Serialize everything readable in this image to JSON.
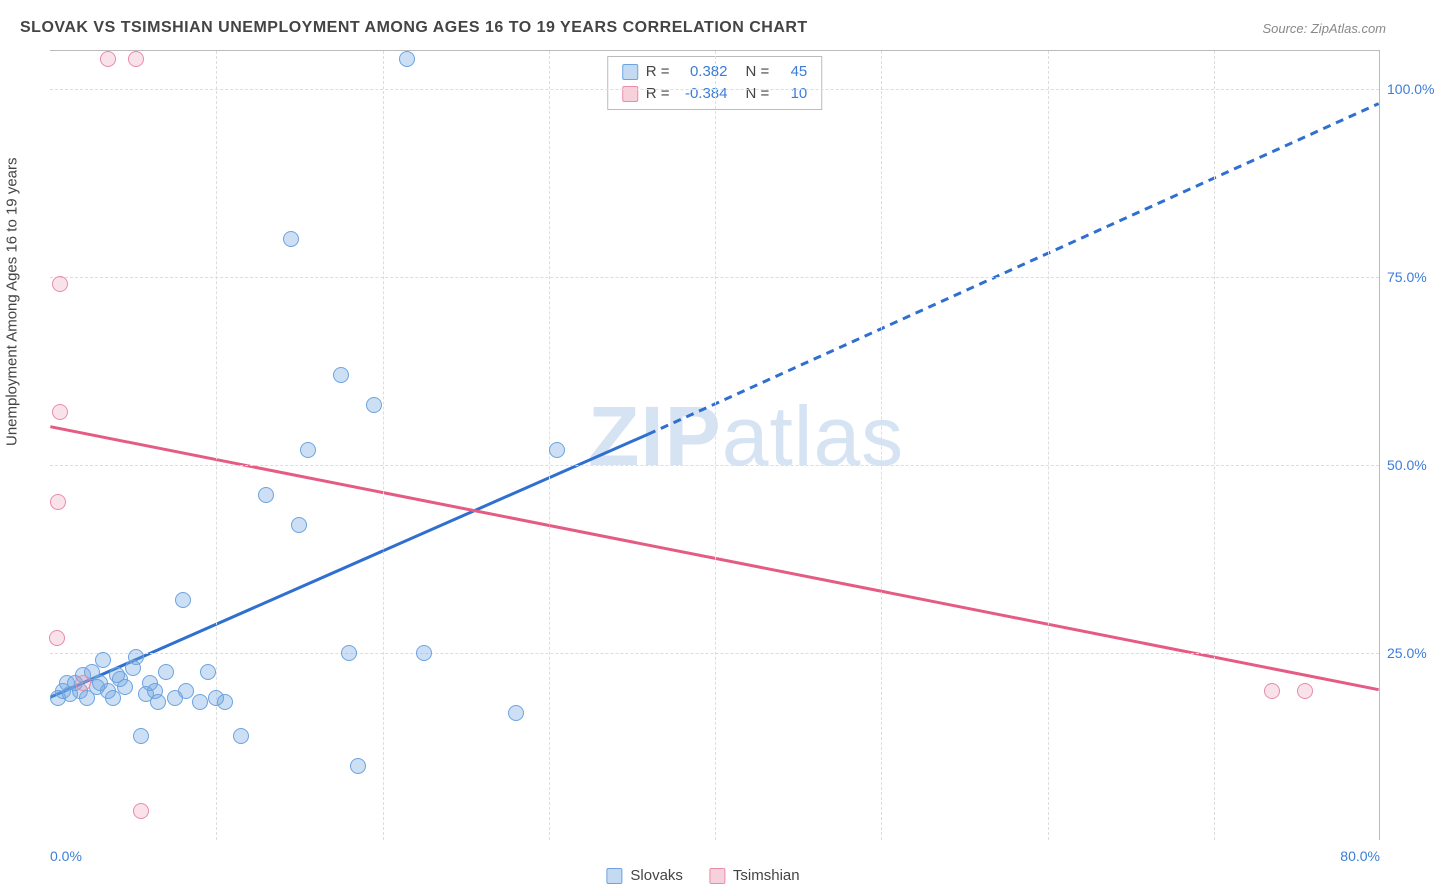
{
  "title": "SLOVAK VS TSIMSHIAN UNEMPLOYMENT AMONG AGES 16 TO 19 YEARS CORRELATION CHART",
  "source": "Source: ZipAtlas.com",
  "ylabel": "Unemployment Among Ages 16 to 19 years",
  "watermark_a": "ZIP",
  "watermark_b": "atlas",
  "chart": {
    "type": "scatter",
    "background_color": "#ffffff",
    "grid_color": "#dddddd",
    "xlim": [
      0,
      80
    ],
    "ylim": [
      0,
      105
    ],
    "xticks": [
      {
        "v": 0,
        "l": "0.0%"
      },
      {
        "v": 80,
        "l": "80.0%"
      }
    ],
    "yticks": [
      {
        "v": 25,
        "l": "25.0%"
      },
      {
        "v": 50,
        "l": "50.0%"
      },
      {
        "v": 75,
        "l": "75.0%"
      },
      {
        "v": 100,
        "l": "100.0%"
      }
    ],
    "vgrid": [
      10,
      20,
      30,
      40,
      50,
      60,
      70
    ],
    "series": [
      {
        "name": "Slovaks",
        "color_fill": "rgba(108,163,224,0.35)",
        "color_stroke": "#6ca3e0",
        "cls": "p-blue",
        "points": [
          [
            0.5,
            19
          ],
          [
            0.8,
            20
          ],
          [
            1.0,
            21
          ],
          [
            1.2,
            19.5
          ],
          [
            1.5,
            21
          ],
          [
            1.8,
            20
          ],
          [
            2.0,
            22
          ],
          [
            2.2,
            19
          ],
          [
            2.5,
            22.5
          ],
          [
            2.8,
            20.5
          ],
          [
            3.0,
            21
          ],
          [
            3.2,
            24
          ],
          [
            3.5,
            20
          ],
          [
            3.8,
            19
          ],
          [
            4.0,
            22
          ],
          [
            4.2,
            21.5
          ],
          [
            4.5,
            20.5
          ],
          [
            5.0,
            23
          ],
          [
            5.2,
            24.5
          ],
          [
            5.5,
            14
          ],
          [
            5.8,
            19.5
          ],
          [
            6.0,
            21
          ],
          [
            6.3,
            20
          ],
          [
            6.5,
            18.5
          ],
          [
            7.0,
            22.5
          ],
          [
            7.5,
            19
          ],
          [
            8.0,
            32
          ],
          [
            8.2,
            20
          ],
          [
            9.0,
            18.5
          ],
          [
            9.5,
            22.5
          ],
          [
            10.0,
            19
          ],
          [
            10.5,
            18.5
          ],
          [
            11.5,
            14
          ],
          [
            13.0,
            46
          ],
          [
            14.5,
            80
          ],
          [
            15.0,
            42
          ],
          [
            15.5,
            52
          ],
          [
            17.5,
            62
          ],
          [
            18.0,
            25
          ],
          [
            18.5,
            10
          ],
          [
            19.5,
            58
          ],
          [
            21.5,
            104
          ],
          [
            22.5,
            25
          ],
          [
            28.0,
            17
          ],
          [
            30.5,
            52
          ]
        ],
        "trend": {
          "solid": [
            [
              0,
              19
            ],
            [
              36,
              54
            ]
          ],
          "dashed": [
            [
              36,
              54
            ],
            [
              80,
              98
            ]
          ],
          "stroke": "#2f6fd0",
          "width": 3
        }
      },
      {
        "name": "Tsimshian",
        "color_fill": "rgba(232,140,168,0.25)",
        "color_stroke": "#e88ca8",
        "cls": "p-pink",
        "points": [
          [
            0.4,
            27
          ],
          [
            0.5,
            45
          ],
          [
            0.6,
            57
          ],
          [
            0.6,
            74
          ],
          [
            2.0,
            21
          ],
          [
            3.5,
            104
          ],
          [
            5.2,
            104
          ],
          [
            5.5,
            4
          ],
          [
            73.5,
            20
          ],
          [
            75.5,
            20
          ]
        ],
        "trend": {
          "solid": [
            [
              0,
              55
            ],
            [
              80,
              20
            ]
          ],
          "stroke": "#e45b84",
          "width": 3
        }
      }
    ],
    "stats": [
      {
        "cls": "sw-blue",
        "r_label": "R =",
        "r": "0.382",
        "n_label": "N =",
        "n": "45"
      },
      {
        "cls": "sw-pink",
        "r_label": "R =",
        "r": "-0.384",
        "n_label": "N =",
        "n": "10"
      }
    ],
    "legend": [
      {
        "cls": "sw-blue",
        "label": "Slovaks"
      },
      {
        "cls": "sw-pink",
        "label": "Tsimshian"
      }
    ]
  }
}
